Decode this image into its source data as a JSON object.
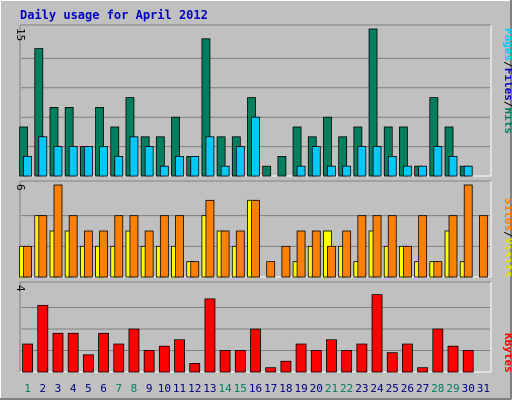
{
  "title": "Daily usage for April 2012",
  "colors": {
    "background": "#c0c0c0",
    "title": "#0000c0",
    "hits": "#007f5f",
    "files": "#00c8f8",
    "pages": "#00c8f8",
    "visits": "#ffff00",
    "sites": "#ff8000",
    "kbytes": "#ff0000",
    "weekend_label": "#007f5f",
    "weekday_label": "#000080"
  },
  "legend_top": {
    "pages": "Pages",
    "sep1": "/",
    "files": "Files",
    "sep2": "/",
    "hits": "Hits"
  },
  "legend_middle": {
    "sites": "Sites",
    "sep": "/",
    "visits": "Visits"
  },
  "legend_bottom": {
    "kbytes": "KBytes"
  },
  "chart_data": [
    {
      "type": "bar",
      "panel": "hits-files-pages",
      "ymax_label": "15",
      "ylim": [
        0,
        15
      ],
      "grid": true,
      "categories": [
        1,
        2,
        3,
        4,
        5,
        6,
        7,
        8,
        9,
        10,
        11,
        12,
        13,
        14,
        15,
        16,
        17,
        18,
        19,
        20,
        21,
        22,
        23,
        24,
        25,
        26,
        27,
        28,
        29,
        30,
        31
      ],
      "series": [
        {
          "name": "Hits",
          "values": [
            5,
            13,
            7,
            7,
            3,
            7,
            5,
            8,
            4,
            4,
            6,
            2,
            14,
            4,
            4,
            8,
            1,
            2,
            5,
            4,
            6,
            4,
            5,
            15,
            5,
            5,
            1,
            8,
            5,
            1,
            0
          ]
        },
        {
          "name": "Files",
          "values": [
            2,
            4,
            3,
            3,
            3,
            3,
            2,
            4,
            3,
            1,
            2,
            2,
            4,
            1,
            3,
            6,
            0,
            0,
            1,
            3,
            1,
            1,
            3,
            3,
            2,
            1,
            1,
            3,
            2,
            1,
            0
          ]
        },
        {
          "name": "Pages",
          "values": [
            2,
            4,
            3,
            3,
            3,
            3,
            2,
            4,
            3,
            1,
            2,
            2,
            4,
            1,
            3,
            6,
            0,
            0,
            1,
            3,
            1,
            1,
            3,
            3,
            2,
            1,
            1,
            3,
            2,
            1,
            0
          ]
        }
      ]
    },
    {
      "type": "bar",
      "panel": "visits-sites",
      "ymax_label": "6",
      "ylim": [
        0,
        6
      ],
      "grid": true,
      "categories": [
        1,
        2,
        3,
        4,
        5,
        6,
        7,
        8,
        9,
        10,
        11,
        12,
        13,
        14,
        15,
        16,
        17,
        18,
        19,
        20,
        21,
        22,
        23,
        24,
        25,
        26,
        27,
        28,
        29,
        30,
        31
      ],
      "series": [
        {
          "name": "Visits",
          "values": [
            2,
            4,
            3,
            3,
            2,
            2,
            2,
            3,
            2,
            2,
            2,
            1,
            4,
            3,
            2,
            5,
            0,
            0,
            1,
            2,
            3,
            2,
            1,
            3,
            2,
            2,
            1,
            1,
            3,
            1,
            0
          ]
        },
        {
          "name": "Sites",
          "values": [
            2,
            4,
            6,
            4,
            3,
            3,
            4,
            4,
            3,
            4,
            4,
            1,
            5,
            3,
            3,
            5,
            1,
            2,
            3,
            3,
            2,
            3,
            4,
            4,
            4,
            2,
            4,
            1,
            4,
            6,
            4
          ]
        }
      ]
    },
    {
      "type": "bar",
      "panel": "kbytes",
      "ymax_label": "4",
      "ylim": [
        0,
        4
      ],
      "grid": true,
      "categories": [
        1,
        2,
        3,
        4,
        5,
        6,
        7,
        8,
        9,
        10,
        11,
        12,
        13,
        14,
        15,
        16,
        17,
        18,
        19,
        20,
        21,
        22,
        23,
        24,
        25,
        26,
        27,
        28,
        29,
        30,
        31
      ],
      "series": [
        {
          "name": "KBytes",
          "values": [
            1.3,
            3.1,
            1.8,
            1.8,
            0.8,
            1.8,
            1.3,
            2.0,
            1.0,
            1.2,
            1.5,
            0.4,
            3.4,
            1.0,
            1.0,
            2.0,
            0.2,
            0.5,
            1.3,
            1.0,
            1.5,
            1.0,
            1.3,
            3.6,
            0.9,
            1.3,
            0.2,
            2.0,
            1.2,
            1.0,
            0
          ]
        }
      ]
    }
  ],
  "x_labels": {
    "days": [
      "1",
      "2",
      "3",
      "4",
      "5",
      "6",
      "7",
      "8",
      "9",
      "10",
      "11",
      "12",
      "13",
      "14",
      "15",
      "16",
      "17",
      "18",
      "19",
      "20",
      "21",
      "22",
      "23",
      "24",
      "25",
      "26",
      "27",
      "28",
      "29",
      "30",
      "31"
    ],
    "weekend": [
      1,
      7,
      8,
      14,
      15,
      21,
      22,
      28,
      29
    ]
  }
}
